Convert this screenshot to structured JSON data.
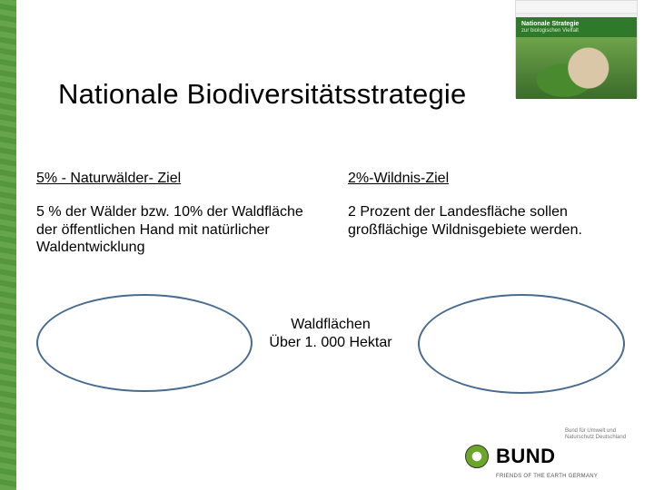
{
  "title": "Nationale Biodiversitätsstrategie",
  "booklet": {
    "banner_line1": "Nationale Strategie",
    "banner_line2": "zur biologischen Vielfalt"
  },
  "left_column": {
    "heading": "5% - Naturwälder- Ziel",
    "body": "5 % der Wälder bzw. 10% der Waldfläche der öffentlichen Hand mit natürlicher Waldentwicklung"
  },
  "right_column": {
    "heading": "2%-Wildnis-Ziel",
    "body": "2 Prozent der Landesfläche sollen großflächige Wildnisgebiete werden."
  },
  "venn": {
    "center_line1": "Waldflächen",
    "center_line2": "Über 1. 000 Hektar",
    "ellipse_border_color": "#486b8f"
  },
  "footer": {
    "ministry_small": "Bund für Umwelt und Naturschutz Deutschland",
    "logo_word": "BUND",
    "logo_sub": "FRIENDS OF THE EARTH GERMANY"
  },
  "colors": {
    "stripe": "#5a9e3f",
    "banner": "#2f7a2a",
    "text": "#000000",
    "background": "#ffffff"
  }
}
